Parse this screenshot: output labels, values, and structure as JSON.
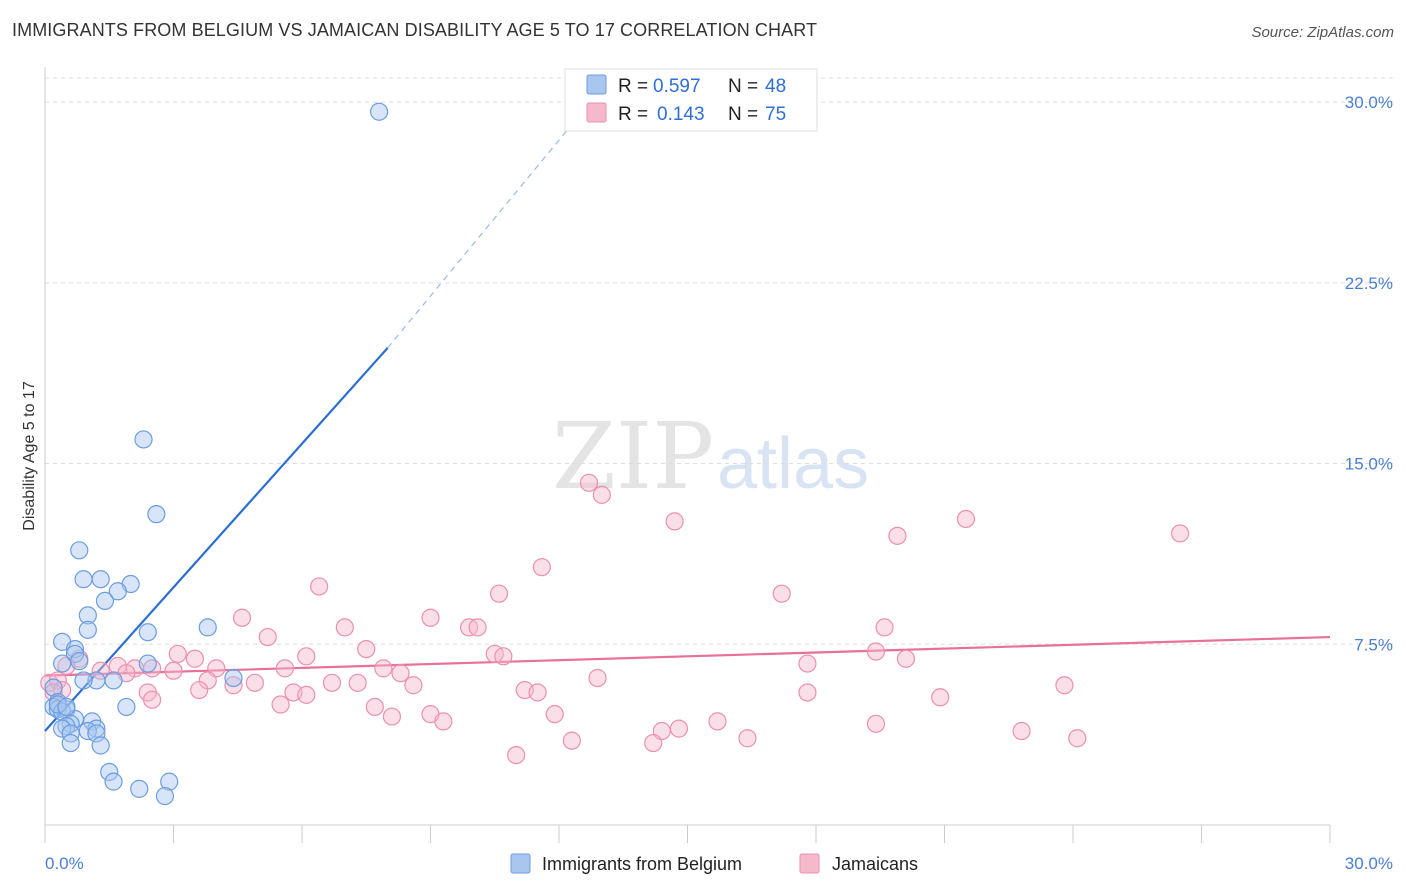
{
  "title": "IMMIGRANTS FROM BELGIUM VS JAMAICAN DISABILITY AGE 5 TO 17 CORRELATION CHART",
  "source": "Source: ZipAtlas.com",
  "watermark": {
    "zip": "ZIP",
    "atlas": "atlas"
  },
  "legend_top": {
    "r_label": "R =",
    "n_label": "N =",
    "rows": [
      {
        "r": "0.597",
        "n": "48"
      },
      {
        "r": "0.143",
        "n": "75"
      }
    ]
  },
  "colors": {
    "blue_fill": "#a9c6ef",
    "blue_stroke": "#6b9ddf",
    "blue_line": "#2a6fcf",
    "pink_fill": "#f6b9cc",
    "pink_stroke": "#ec8fb0",
    "pink_line": "#e8709a",
    "grid": "#dddddd",
    "tick_text": "#4a7fd0"
  },
  "chart_data": {
    "type": "scatter",
    "title": "IMMIGRANTS FROM BELGIUM VS JAMAICAN DISABILITY AGE 5 TO 17 CORRELATION CHART",
    "xlabel": "",
    "ylabel": "Disability Age 5 to 17",
    "xlim": [
      0,
      30
    ],
    "ylim": [
      0,
      31
    ],
    "x_tick_labels": [
      "0.0%",
      "30.0%"
    ],
    "y_ticks": [
      7.5,
      15.0,
      22.5,
      30.0
    ],
    "y_tick_labels": [
      "7.5%",
      "15.0%",
      "22.5%",
      "30.0%"
    ],
    "grid": true,
    "legend_position": "bottom",
    "series": [
      {
        "name": "Immigrants from Belgium",
        "color": "#a9c6ef",
        "r": 0.597,
        "n": 48,
        "trend": {
          "x": [
            0.0,
            8.0
          ],
          "y": [
            3.9,
            19.8
          ],
          "dashed_to": [
            12.5,
            29.5
          ]
        },
        "points": [
          [
            7.8,
            29.6
          ],
          [
            2.3,
            16.0
          ],
          [
            2.6,
            12.9
          ],
          [
            0.8,
            11.4
          ],
          [
            0.9,
            10.2
          ],
          [
            1.3,
            10.2
          ],
          [
            2.0,
            10.0
          ],
          [
            1.7,
            9.7
          ],
          [
            1.4,
            9.3
          ],
          [
            1.0,
            8.7
          ],
          [
            3.8,
            8.2
          ],
          [
            2.4,
            8.0
          ],
          [
            1.0,
            8.1
          ],
          [
            0.4,
            7.6
          ],
          [
            0.7,
            7.3
          ],
          [
            0.7,
            7.1
          ],
          [
            0.8,
            6.8
          ],
          [
            2.4,
            6.7
          ],
          [
            0.4,
            6.7
          ],
          [
            1.2,
            6.0
          ],
          [
            0.9,
            6.0
          ],
          [
            1.6,
            6.0
          ],
          [
            4.4,
            6.1
          ],
          [
            0.2,
            5.7
          ],
          [
            0.3,
            5.1
          ],
          [
            0.2,
            4.9
          ],
          [
            0.3,
            4.8
          ],
          [
            0.5,
            4.8
          ],
          [
            0.4,
            4.7
          ],
          [
            1.9,
            4.9
          ],
          [
            0.7,
            4.4
          ],
          [
            1.1,
            4.3
          ],
          [
            0.6,
            4.2
          ],
          [
            0.5,
            4.1
          ],
          [
            0.4,
            4.0
          ],
          [
            1.2,
            4.0
          ],
          [
            1.0,
            3.9
          ],
          [
            0.6,
            3.8
          ],
          [
            1.2,
            3.8
          ],
          [
            0.6,
            3.4
          ],
          [
            1.3,
            3.3
          ],
          [
            1.5,
            2.2
          ],
          [
            1.6,
            1.8
          ],
          [
            2.2,
            1.5
          ],
          [
            2.9,
            1.8
          ],
          [
            2.8,
            1.2
          ],
          [
            0.3,
            5.0
          ],
          [
            0.5,
            4.9
          ]
        ]
      },
      {
        "name": "Jamaicans",
        "color": "#f6b9cc",
        "r": 0.143,
        "n": 75,
        "trend": {
          "x": [
            0.0,
            30.0
          ],
          "y": [
            6.2,
            7.8
          ]
        },
        "points": [
          [
            12.7,
            14.2
          ],
          [
            13.0,
            13.7
          ],
          [
            14.7,
            12.6
          ],
          [
            19.9,
            12.0
          ],
          [
            21.5,
            12.7
          ],
          [
            26.5,
            12.1
          ],
          [
            11.6,
            10.7
          ],
          [
            6.4,
            9.9
          ],
          [
            10.6,
            9.6
          ],
          [
            17.2,
            9.6
          ],
          [
            4.6,
            8.6
          ],
          [
            9.0,
            8.6
          ],
          [
            9.9,
            8.2
          ],
          [
            10.1,
            8.2
          ],
          [
            7.0,
            8.2
          ],
          [
            19.6,
            8.2
          ],
          [
            5.2,
            7.8
          ],
          [
            7.5,
            7.3
          ],
          [
            10.5,
            7.1
          ],
          [
            10.7,
            7.0
          ],
          [
            19.4,
            7.2
          ],
          [
            20.1,
            6.9
          ],
          [
            6.1,
            7.0
          ],
          [
            3.1,
            7.1
          ],
          [
            3.5,
            6.9
          ],
          [
            17.8,
            6.7
          ],
          [
            1.7,
            6.6
          ],
          [
            2.1,
            6.5
          ],
          [
            2.5,
            6.5
          ],
          [
            3.0,
            6.4
          ],
          [
            4.0,
            6.5
          ],
          [
            5.6,
            6.5
          ],
          [
            7.9,
            6.5
          ],
          [
            8.3,
            6.3
          ],
          [
            1.3,
            6.4
          ],
          [
            1.9,
            6.3
          ],
          [
            12.9,
            6.1
          ],
          [
            3.8,
            6.0
          ],
          [
            4.9,
            5.9
          ],
          [
            6.7,
            5.9
          ],
          [
            7.3,
            5.9
          ],
          [
            4.4,
            5.8
          ],
          [
            8.6,
            5.8
          ],
          [
            3.6,
            5.6
          ],
          [
            2.4,
            5.5
          ],
          [
            5.8,
            5.5
          ],
          [
            6.1,
            5.4
          ],
          [
            11.2,
            5.6
          ],
          [
            11.5,
            5.5
          ],
          [
            17.8,
            5.5
          ],
          [
            20.9,
            5.3
          ],
          [
            23.8,
            5.8
          ],
          [
            2.5,
            5.2
          ],
          [
            5.5,
            5.0
          ],
          [
            7.7,
            4.9
          ],
          [
            8.1,
            4.5
          ],
          [
            9.0,
            4.6
          ],
          [
            9.3,
            4.3
          ],
          [
            11.9,
            4.6
          ],
          [
            15.7,
            4.3
          ],
          [
            19.4,
            4.2
          ],
          [
            14.4,
            3.9
          ],
          [
            14.8,
            4.0
          ],
          [
            16.4,
            3.6
          ],
          [
            12.3,
            3.5
          ],
          [
            14.2,
            3.4
          ],
          [
            22.8,
            3.9
          ],
          [
            24.1,
            3.6
          ],
          [
            11.0,
            2.9
          ],
          [
            0.1,
            5.9
          ],
          [
            0.3,
            6.0
          ],
          [
            0.4,
            5.6
          ],
          [
            0.8,
            6.9
          ],
          [
            0.5,
            6.6
          ],
          [
            0.2,
            5.5
          ]
        ]
      }
    ]
  },
  "bottom_legend": [
    {
      "label": "Immigrants from Belgium"
    },
    {
      "label": "Jamaicans"
    }
  ]
}
